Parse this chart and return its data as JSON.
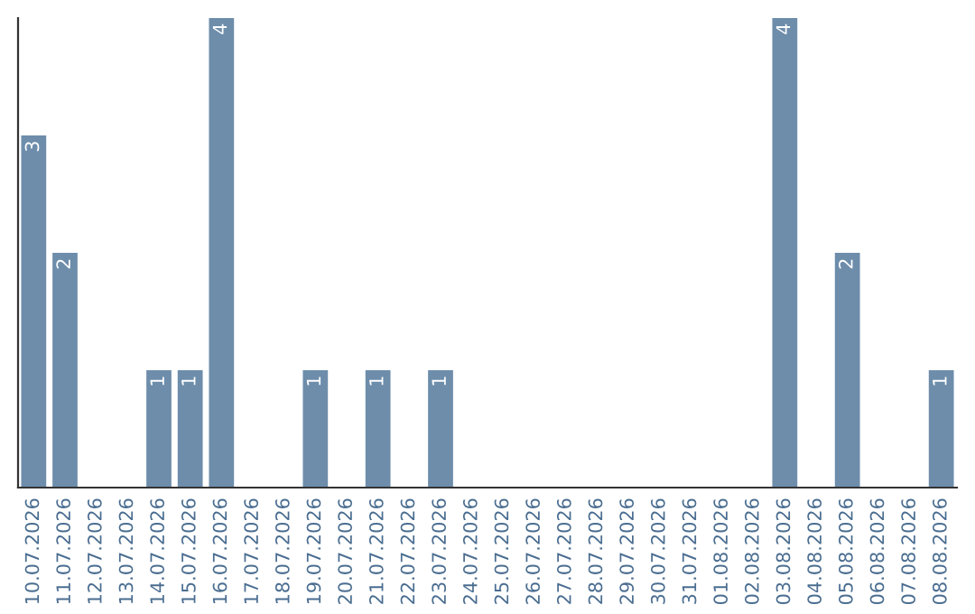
{
  "chart_data": {
    "type": "bar",
    "categories": [
      "10.07.2026",
      "11.07.2026",
      "12.07.2026",
      "13.07.2026",
      "14.07.2026",
      "15.07.2026",
      "16.07.2026",
      "17.07.2026",
      "18.07.2026",
      "19.07.2026",
      "20.07.2026",
      "21.07.2026",
      "22.07.2026",
      "23.07.2026",
      "24.07.2026",
      "25.07.2026",
      "26.07.2026",
      "27.07.2026",
      "28.07.2026",
      "29.07.2026",
      "30.07.2026",
      "31.07.2026",
      "01.08.2026",
      "02.08.2026",
      "03.08.2026",
      "04.08.2026",
      "05.08.2026",
      "06.08.2026",
      "07.08.2026",
      "08.08.2026"
    ],
    "values": [
      3,
      2,
      0,
      0,
      1,
      1,
      4,
      0,
      0,
      1,
      0,
      1,
      0,
      1,
      0,
      0,
      0,
      0,
      0,
      0,
      0,
      0,
      0,
      0,
      4,
      0,
      2,
      0,
      0,
      1
    ],
    "value_labels": [
      "3",
      "2",
      null,
      null,
      "1",
      "1",
      "4",
      null,
      null,
      "1",
      null,
      "1",
      null,
      "1",
      null,
      null,
      null,
      null,
      null,
      null,
      null,
      null,
      null,
      null,
      "4",
      null,
      "2",
      null,
      null,
      "1"
    ],
    "color": "#6d8dab",
    "grid": false,
    "legend": false
  }
}
